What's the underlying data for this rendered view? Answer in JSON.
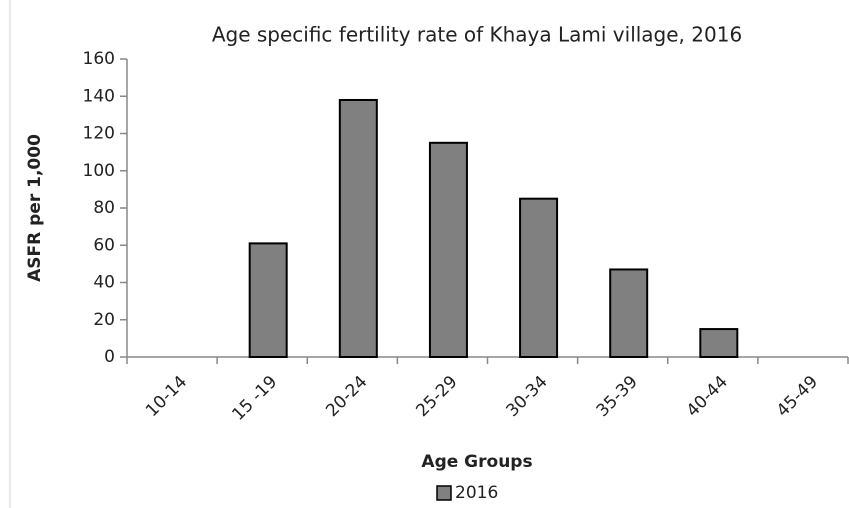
{
  "chart_data": {
    "type": "bar",
    "title": "Age specific fertility rate of Khaya Lami village, 2016",
    "x_label": "Age Groups",
    "y_label": "ASFR per 1,000",
    "categories": [
      "10-14",
      "15 -19",
      "20-24",
      "25-29",
      "30-34",
      "35-39",
      "40-44",
      "45-49"
    ],
    "series": [
      {
        "name": "2016",
        "color": "#808080",
        "values": [
          0,
          61,
          138,
          115,
          85,
          47,
          15,
          0
        ]
      }
    ],
    "ylim": [
      0,
      160
    ],
    "yticks": [
      0,
      20,
      40,
      60,
      80,
      100,
      120,
      140,
      160
    ],
    "grid": false,
    "legend": "bottom"
  }
}
